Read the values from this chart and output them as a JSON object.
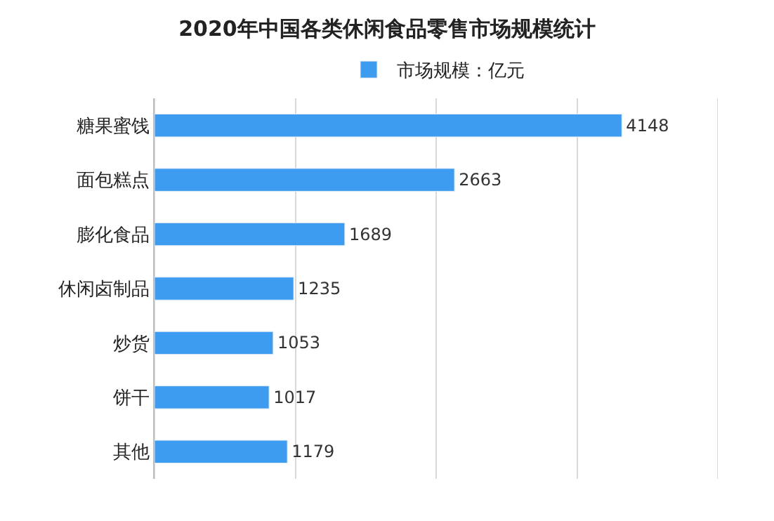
{
  "chart_data": {
    "type": "bar",
    "orientation": "horizontal",
    "title": "2020年中国各类休闲食品零售市场规模统计",
    "categories": [
      "糖果蜜饯",
      "面包糕点",
      "膨化食品",
      "休闲卤制品",
      "炒货",
      "饼干",
      "其他"
    ],
    "series": [
      {
        "name": "市场规模：亿元",
        "color": "#3d9cf0",
        "values": [
          4148,
          2663,
          1689,
          1235,
          1053,
          1017,
          1179
        ]
      }
    ],
    "data_labels": true,
    "legend": "top",
    "grid": "x",
    "xlim": [
      0,
      5000
    ],
    "xticks": [
      {
        "value": 0,
        "label": null
      },
      {
        "value": 1250,
        "label": null
      },
      {
        "value": 2500,
        "label": null
      },
      {
        "value": 3750,
        "label": null
      },
      {
        "value": 5000,
        "label": null
      }
    ],
    "tick_labels": "y"
  }
}
